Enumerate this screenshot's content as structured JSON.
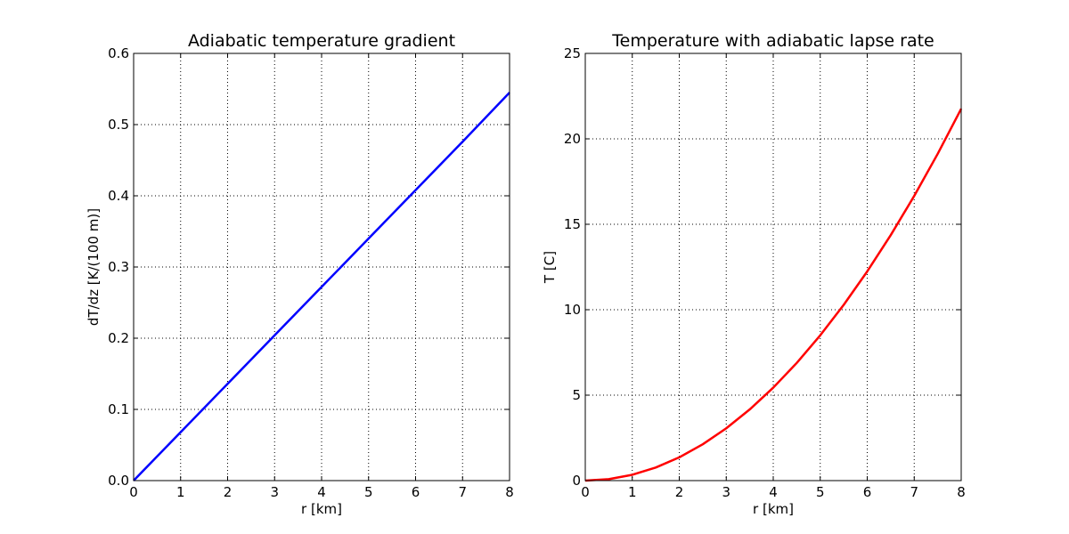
{
  "chart_data": [
    {
      "type": "line",
      "title": "Adiabatic temperature gradient",
      "xlabel": "r [km]",
      "ylabel": "dT/dz [K/(100 m)]",
      "xlim": [
        0,
        8
      ],
      "ylim": [
        0,
        0.6
      ],
      "xticks": [
        "0",
        "1",
        "2",
        "3",
        "4",
        "5",
        "6",
        "7",
        "8"
      ],
      "yticks": [
        "0.0",
        "0.1",
        "0.2",
        "0.3",
        "0.4",
        "0.5",
        "0.6"
      ],
      "grid": true,
      "series": [
        {
          "color": "#0000ff",
          "x": [
            0,
            1,
            2,
            3,
            4,
            5,
            6,
            7,
            8
          ],
          "y": [
            0.0,
            0.068,
            0.136,
            0.204,
            0.272,
            0.34,
            0.408,
            0.476,
            0.545
          ]
        }
      ]
    },
    {
      "type": "line",
      "title": "Temperature with adiabatic lapse rate",
      "xlabel": "r [km]",
      "ylabel": "T [C]",
      "xlim": [
        0,
        8
      ],
      "ylim": [
        0,
        25
      ],
      "xticks": [
        "0",
        "1",
        "2",
        "3",
        "4",
        "5",
        "6",
        "7",
        "8"
      ],
      "yticks": [
        "0",
        "5",
        "10",
        "15",
        "20",
        "25"
      ],
      "grid": true,
      "series": [
        {
          "color": "#ff0000",
          "x": [
            0,
            0.5,
            1,
            1.5,
            2,
            2.5,
            3,
            3.5,
            4,
            4.5,
            5,
            5.5,
            6,
            6.5,
            7,
            7.5,
            8
          ],
          "y": [
            0.0,
            0.085,
            0.34,
            0.765,
            1.36,
            2.125,
            3.06,
            4.165,
            5.44,
            6.885,
            8.5,
            10.285,
            12.24,
            14.365,
            16.66,
            19.125,
            21.76
          ]
        }
      ]
    }
  ]
}
